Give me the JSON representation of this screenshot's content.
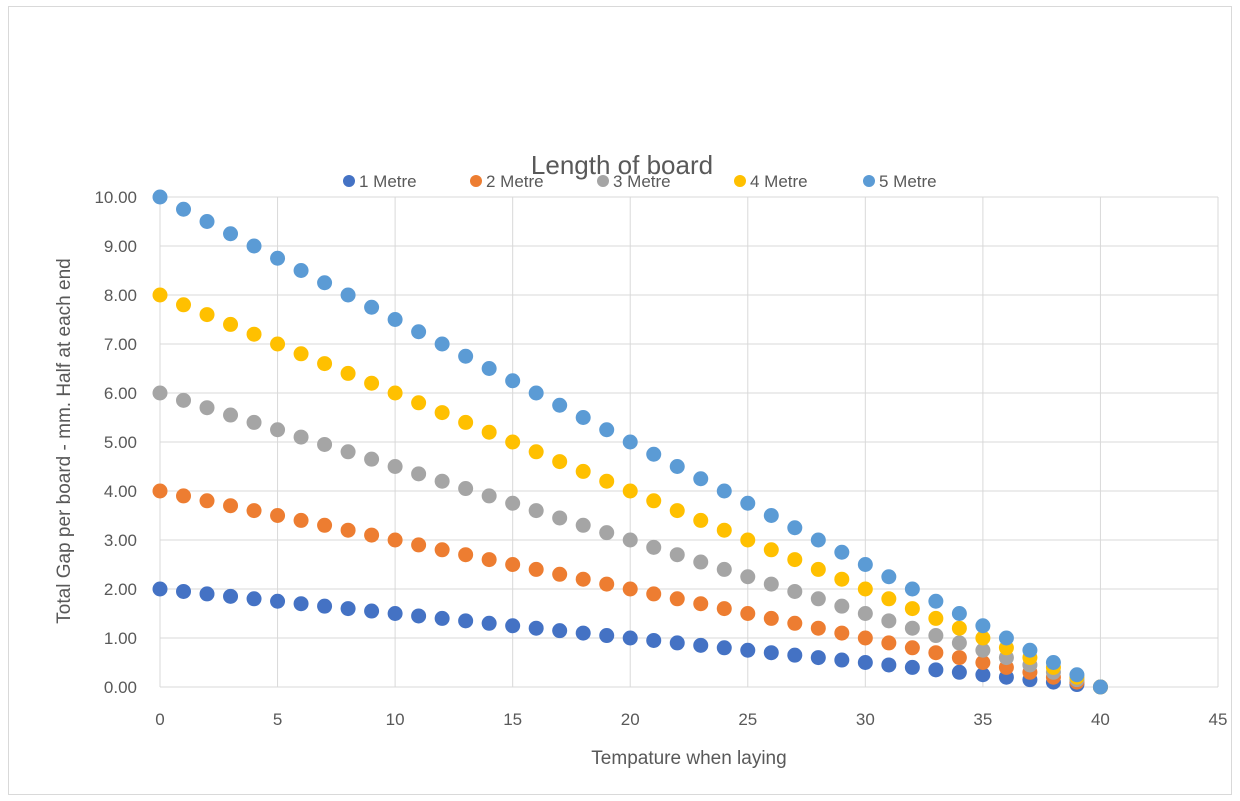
{
  "chart_data": {
    "type": "scatter",
    "title": "Length of board",
    "xlabel": "Tempature when laying",
    "ylabel": "Total Gap per board - mm.  Half at each end",
    "xlim": [
      0,
      45
    ],
    "ylim": [
      0,
      10
    ],
    "x_ticks": [
      0,
      5,
      10,
      15,
      20,
      25,
      30,
      35,
      40,
      45
    ],
    "y_ticks": [
      0,
      1,
      2,
      3,
      4,
      5,
      6,
      7,
      8,
      9,
      10
    ],
    "y_tick_labels": [
      "0.00",
      "1.00",
      "2.00",
      "3.00",
      "4.00",
      "5.00",
      "6.00",
      "7.00",
      "8.00",
      "9.00",
      "10.00"
    ],
    "grid": true,
    "legend_position": "top",
    "x": [
      0,
      1,
      2,
      3,
      4,
      5,
      6,
      7,
      8,
      9,
      10,
      11,
      12,
      13,
      14,
      15,
      16,
      17,
      18,
      19,
      20,
      21,
      22,
      23,
      24,
      25,
      26,
      27,
      28,
      29,
      30,
      31,
      32,
      33,
      34,
      35,
      36,
      37,
      38,
      39,
      40
    ],
    "series": [
      {
        "name": "1 Metre",
        "color": "#4472C4",
        "values": [
          2.0,
          1.95,
          1.9,
          1.85,
          1.8,
          1.75,
          1.7,
          1.65,
          1.6,
          1.55,
          1.5,
          1.45,
          1.4,
          1.35,
          1.3,
          1.25,
          1.2,
          1.15,
          1.1,
          1.05,
          1.0,
          0.95,
          0.9,
          0.85,
          0.8,
          0.75,
          0.7,
          0.65,
          0.6,
          0.55,
          0.5,
          0.45,
          0.4,
          0.35,
          0.3,
          0.25,
          0.2,
          0.15,
          0.1,
          0.05,
          0.0
        ]
      },
      {
        "name": "2 Metre",
        "color": "#ED7D31",
        "values": [
          4.0,
          3.9,
          3.8,
          3.7,
          3.6,
          3.5,
          3.4,
          3.3,
          3.2,
          3.1,
          3.0,
          2.9,
          2.8,
          2.7,
          2.6,
          2.5,
          2.4,
          2.3,
          2.2,
          2.1,
          2.0,
          1.9,
          1.8,
          1.7,
          1.6,
          1.5,
          1.4,
          1.3,
          1.2,
          1.1,
          1.0,
          0.9,
          0.8,
          0.7,
          0.6,
          0.5,
          0.4,
          0.3,
          0.2,
          0.1,
          0.0
        ]
      },
      {
        "name": "3 Metre",
        "color": "#A5A5A5",
        "values": [
          6.0,
          5.85,
          5.7,
          5.55,
          5.4,
          5.25,
          5.1,
          4.95,
          4.8,
          4.65,
          4.5,
          4.35,
          4.2,
          4.05,
          3.9,
          3.75,
          3.6,
          3.45,
          3.3,
          3.15,
          3.0,
          2.85,
          2.7,
          2.55,
          2.4,
          2.25,
          2.1,
          1.95,
          1.8,
          1.65,
          1.5,
          1.35,
          1.2,
          1.05,
          0.9,
          0.75,
          0.6,
          0.45,
          0.3,
          0.15,
          0.0
        ]
      },
      {
        "name": "4 Metre",
        "color": "#FFC000",
        "values": [
          8.0,
          7.8,
          7.6,
          7.4,
          7.2,
          7.0,
          6.8,
          6.6,
          6.4,
          6.2,
          6.0,
          5.8,
          5.6,
          5.4,
          5.2,
          5.0,
          4.8,
          4.6,
          4.4,
          4.2,
          4.0,
          3.8,
          3.6,
          3.4,
          3.2,
          3.0,
          2.8,
          2.6,
          2.4,
          2.2,
          2.0,
          1.8,
          1.6,
          1.4,
          1.2,
          1.0,
          0.8,
          0.6,
          0.4,
          0.2,
          0.0
        ]
      },
      {
        "name": "5 Metre",
        "color": "#5B9BD5",
        "values": [
          10.0,
          9.75,
          9.5,
          9.25,
          9.0,
          8.75,
          8.5,
          8.25,
          8.0,
          7.75,
          7.5,
          7.25,
          7.0,
          6.75,
          6.5,
          6.25,
          6.0,
          5.75,
          5.5,
          5.25,
          5.0,
          4.75,
          4.5,
          4.25,
          4.0,
          3.75,
          3.5,
          3.25,
          3.0,
          2.75,
          2.5,
          2.25,
          2.0,
          1.75,
          1.5,
          1.25,
          1.0,
          0.75,
          0.5,
          0.25,
          0.0
        ]
      }
    ]
  }
}
